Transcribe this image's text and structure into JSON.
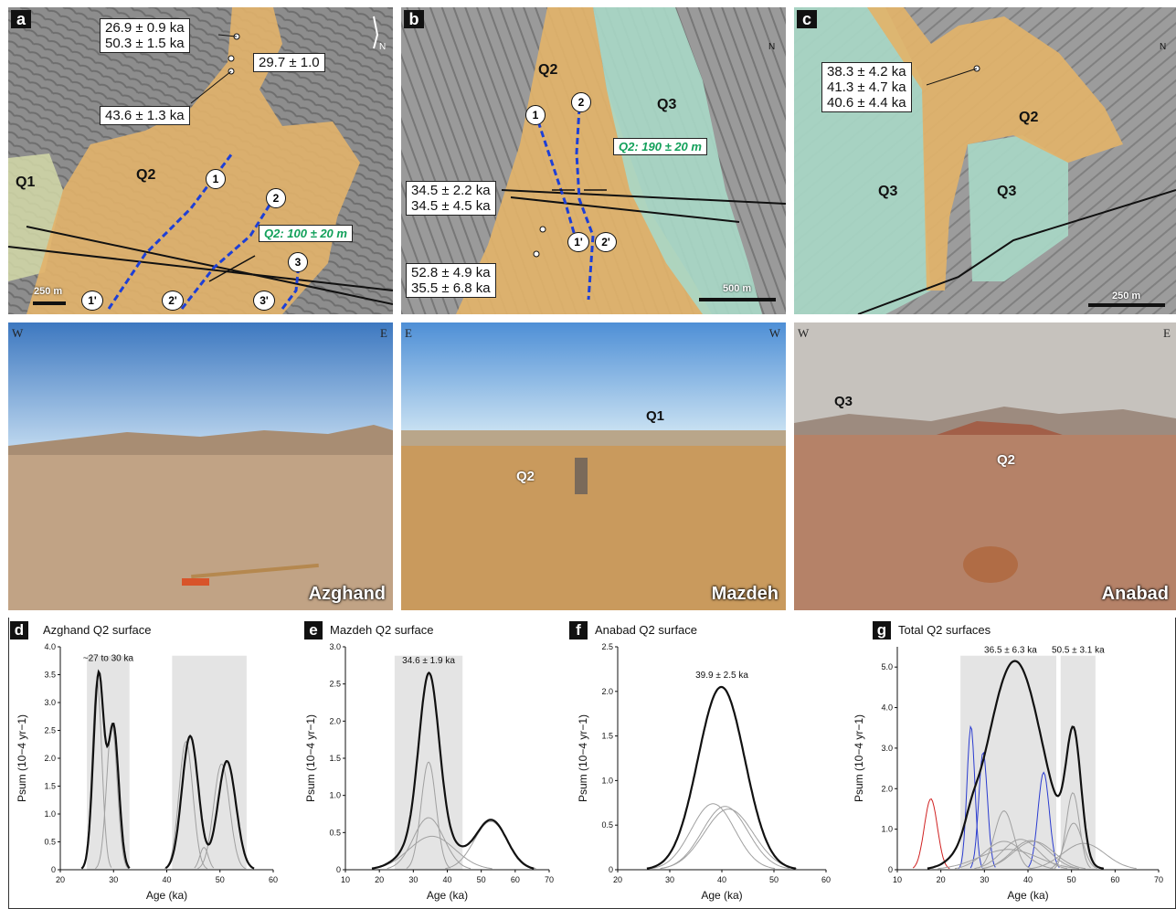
{
  "colors": {
    "q1": "#d4d9a8",
    "q2": "#e2b36a",
    "q3": "#a9d8c6",
    "track": "#1d3fd6",
    "green": "#12a05a",
    "red": "#d02020",
    "blue": "#2a3bd0"
  },
  "map_a": {
    "label": "a",
    "box1": [
      "26.9 ± 0.9 ka",
      "50.3 ± 1.5 ka"
    ],
    "box2": "29.7 ± 1.0",
    "box3": "43.6 ± 1.3 ka",
    "q1": "Q1",
    "q2": "Q2",
    "offset": "Q2: 100 ± 20 m",
    "scale": "250 m",
    "points": [
      "1",
      "2",
      "3",
      "1'",
      "2'",
      "3'"
    ]
  },
  "map_b": {
    "label": "b",
    "box1": [
      "34.5 ± 2.2 ka",
      "34.5 ± 4.5 ka"
    ],
    "box2": [
      "52.8 ± 4.9 ka",
      "35.5 ± 6.8 ka"
    ],
    "q2": "Q2",
    "q3": "Q3",
    "offset": "Q2: 190 ± 20 m",
    "scale": "500 m",
    "points": [
      "1",
      "2",
      "1'",
      "2'"
    ]
  },
  "map_c": {
    "label": "c",
    "box1": [
      "38.3 ± 4.2 ka",
      "41.3 ± 4.7 ka",
      "40.6 ± 4.4 ka"
    ],
    "q2": "Q2",
    "q3a": "Q3",
    "q3b": "Q3",
    "scale": "250 m"
  },
  "north": "N",
  "photo_a": {
    "left": "W",
    "right": "E",
    "loc": "Azghand"
  },
  "photo_b": {
    "left": "E",
    "right": "W",
    "loc": "Mazdeh",
    "q1": "Q1",
    "q2": "Q2"
  },
  "photo_c": {
    "left": "W",
    "right": "E",
    "loc": "Anabad",
    "q3": "Q3",
    "q2": "Q2"
  },
  "axis": {
    "xlabel": "Age (ka)",
    "ylabel": "Psum (10−4 yr−1)"
  },
  "chart_data": [
    {
      "panel": "d",
      "title": "Azghand Q2 surface",
      "type": "line",
      "xlim": [
        20,
        60
      ],
      "ylim": [
        0,
        4.0
      ],
      "xticks": [
        20,
        30,
        40,
        50,
        60
      ],
      "yticks": [
        0,
        0.5,
        1.0,
        1.5,
        2.0,
        2.5,
        3.0,
        3.5,
        4.0
      ],
      "annotation": "~27 to 30 ka",
      "shaded": [
        [
          25,
          33
        ],
        [
          41,
          55
        ]
      ],
      "components": [
        {
          "mu": 26.9,
          "sd": 0.9,
          "amp": 3.4,
          "color": "gray"
        },
        {
          "mu": 29.7,
          "sd": 1.0,
          "amp": 2.6,
          "color": "gray"
        },
        {
          "mu": 43.6,
          "sd": 1.3,
          "amp": 2.3,
          "color": "gray"
        },
        {
          "mu": 50.3,
          "sd": 1.5,
          "amp": 1.9,
          "color": "gray"
        },
        {
          "mu": 47,
          "sd": 0.8,
          "amp": 0.4,
          "color": "gray"
        }
      ],
      "sum": [
        {
          "mu": 27.2,
          "sd": 1.0,
          "amp": 3.5
        },
        {
          "mu": 30.0,
          "sd": 1.0,
          "amp": 2.55
        },
        {
          "mu": 44.4,
          "sd": 1.55,
          "amp": 2.4
        },
        {
          "mu": 51.3,
          "sd": 1.7,
          "amp": 1.95
        }
      ]
    },
    {
      "panel": "e",
      "title": "Mazdeh Q2 surface",
      "type": "line",
      "xlim": [
        10,
        70
      ],
      "ylim": [
        0,
        3.0
      ],
      "xticks": [
        10,
        20,
        30,
        40,
        50,
        60,
        70
      ],
      "yticks": [
        0,
        0.5,
        1.0,
        1.5,
        2.0,
        2.5,
        3.0
      ],
      "annotation": "34.6 ± 1.9 ka",
      "shaded": [
        [
          24.5,
          44.5
        ]
      ],
      "components": [
        {
          "mu": 34.5,
          "sd": 2.2,
          "amp": 1.45,
          "color": "gray"
        },
        {
          "mu": 34.5,
          "sd": 4.5,
          "amp": 0.7,
          "color": "gray"
        },
        {
          "mu": 35.5,
          "sd": 6.8,
          "amp": 0.45,
          "color": "gray"
        },
        {
          "mu": 52.8,
          "sd": 4.9,
          "amp": 0.65,
          "color": "gray"
        }
      ],
      "sum": [
        {
          "mu": 34.6,
          "sd": 2.9,
          "amp": 2.1
        },
        {
          "mu": 35,
          "sd": 6.5,
          "amp": 0.55
        },
        {
          "mu": 53,
          "sd": 4.6,
          "amp": 0.66
        }
      ]
    },
    {
      "panel": "f",
      "title": "Anabad Q2 surface",
      "type": "line",
      "xlim": [
        20,
        60
      ],
      "ylim": [
        0,
        2.5
      ],
      "xticks": [
        20,
        30,
        40,
        50,
        60
      ],
      "yticks": [
        0,
        0.5,
        1.0,
        1.5,
        2.0,
        2.5
      ],
      "annotation": "39.9 ± 2.5 ka",
      "shaded": [],
      "components": [
        {
          "mu": 38.3,
          "sd": 4.2,
          "amp": 0.74,
          "color": "gray"
        },
        {
          "mu": 41.3,
          "sd": 4.7,
          "amp": 0.68,
          "color": "gray"
        },
        {
          "mu": 40.6,
          "sd": 4.4,
          "amp": 0.71,
          "color": "gray"
        }
      ],
      "sum": [
        {
          "mu": 39.9,
          "sd": 4.5,
          "amp": 2.05
        }
      ]
    },
    {
      "panel": "g",
      "title": "Total Q2 surfaces",
      "type": "line",
      "xlim": [
        10,
        70
      ],
      "ylim": [
        0,
        5.5
      ],
      "xticks": [
        10,
        20,
        30,
        40,
        50,
        60,
        70
      ],
      "yticks": [
        0,
        1.0,
        2.0,
        3.0,
        4.0,
        5.0
      ],
      "annotation": [
        "36.5 ± 6.3 ka",
        "50.5 ± 3.1 ka"
      ],
      "shaded": [
        [
          24.5,
          46.5
        ],
        [
          47.5,
          55.5
        ]
      ],
      "components": [
        {
          "mu": 17.7,
          "sd": 1.5,
          "amp": 1.75,
          "color": "red"
        },
        {
          "mu": 26.9,
          "sd": 0.9,
          "amp": 3.55,
          "color": "blue"
        },
        {
          "mu": 29.7,
          "sd": 1.0,
          "amp": 2.9,
          "color": "blue"
        },
        {
          "mu": 43.6,
          "sd": 1.3,
          "amp": 2.4,
          "color": "blue"
        },
        {
          "mu": 34.5,
          "sd": 2.2,
          "amp": 1.45,
          "color": "gray"
        },
        {
          "mu": 34.5,
          "sd": 4.5,
          "amp": 0.7,
          "color": "gray"
        },
        {
          "mu": 35.5,
          "sd": 6.8,
          "amp": 0.5,
          "color": "gray"
        },
        {
          "mu": 38.3,
          "sd": 4.2,
          "amp": 0.75,
          "color": "gray"
        },
        {
          "mu": 41.3,
          "sd": 4.7,
          "amp": 0.7,
          "color": "gray"
        },
        {
          "mu": 40.6,
          "sd": 4.4,
          "amp": 0.72,
          "color": "gray"
        },
        {
          "mu": 50.3,
          "sd": 1.5,
          "amp": 1.9,
          "color": "gray"
        },
        {
          "mu": 50.5,
          "sd": 2.0,
          "amp": 1.15,
          "color": "gray"
        },
        {
          "mu": 52.8,
          "sd": 4.9,
          "amp": 0.65,
          "color": "gray"
        }
      ],
      "sum": [
        {
          "mu": 37.0,
          "sd": 6.3,
          "amp": 5.15
        },
        {
          "mu": 50.5,
          "sd": 1.7,
          "amp": 3.0
        },
        {
          "mu": 27,
          "sd": 1.5,
          "amp": 0.3
        }
      ]
    }
  ]
}
